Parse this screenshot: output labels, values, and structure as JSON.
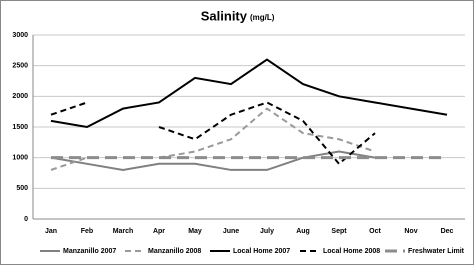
{
  "chart_data": {
    "type": "line",
    "title": "Salinity",
    "title_unit": "(mg/L)",
    "categories": [
      "Jan",
      "Feb",
      "March",
      "Apr",
      "May",
      "June",
      "July",
      "Aug",
      "Sept",
      "Oct",
      "Nov",
      "Dec"
    ],
    "ylim": [
      0,
      3000
    ],
    "yticks": [
      0,
      500,
      1000,
      1500,
      2000,
      2500,
      3000
    ],
    "grid": true,
    "legend": "bottom",
    "series": [
      {
        "name": "Manzanillo 2007",
        "color": "#808080",
        "dash": "solid",
        "width": 2,
        "values": [
          1000,
          900,
          800,
          900,
          900,
          800,
          800,
          1000,
          1100,
          1000,
          null,
          null
        ]
      },
      {
        "name": "Manzanillo 2008",
        "color": "#999999",
        "dash": "dashed",
        "width": 2,
        "values": [
          800,
          1000,
          null,
          1000,
          1100,
          1300,
          1800,
          1400,
          1300,
          1100,
          null,
          null
        ]
      },
      {
        "name": "Local Home 2007",
        "color": "#000000",
        "dash": "solid",
        "width": 2,
        "values": [
          1600,
          1500,
          1800,
          1900,
          2300,
          2200,
          2600,
          2200,
          2000,
          1900,
          1800,
          1700
        ]
      },
      {
        "name": "Local Home 2008",
        "color": "#000000",
        "dash": "dashed",
        "width": 2,
        "values": [
          1700,
          1900,
          null,
          1500,
          1300,
          1700,
          1900,
          1600,
          900,
          1400,
          null,
          null
        ]
      },
      {
        "name": "Freshwater Limit",
        "color": "#8c8c8c",
        "dash": "longdash",
        "width": 3,
        "values": [
          1000,
          1000,
          1000,
          1000,
          1000,
          1000,
          1000,
          1000,
          1000,
          1000,
          1000,
          1000
        ]
      }
    ]
  }
}
